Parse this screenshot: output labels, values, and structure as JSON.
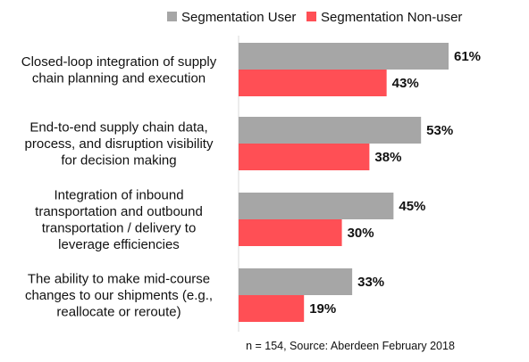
{
  "chart_data": {
    "type": "bar",
    "orientation": "horizontal",
    "categories": [
      [
        "Closed-loop integration of supply",
        "chain planning and execution"
      ],
      [
        "End-to-end supply chain data,",
        "process, and disruption visibility",
        "for decision making"
      ],
      [
        "Integration of inbound",
        "transportation and outbound",
        "transportation / delivery to",
        "leverage efficiencies"
      ],
      [
        "The ability to make mid-course",
        "changes to our shipments (e.g.,",
        "reallocate or reroute)"
      ]
    ],
    "series": [
      {
        "name": "Segmentation User",
        "color": "#a6a6a6",
        "values": [
          61,
          53,
          45,
          33
        ],
        "labels": [
          "61%",
          "53%",
          "45%",
          "33%"
        ]
      },
      {
        "name": "Segmentation Non-user",
        "color": "#ff4f55",
        "values": [
          43,
          38,
          30,
          19
        ],
        "labels": [
          "43%",
          "38%",
          "30%",
          "19%"
        ]
      }
    ],
    "xlim": [
      0,
      61
    ],
    "grid": false,
    "legend_position": "top-right",
    "source": "n = 154, Source: Aberdeen February 2018"
  }
}
